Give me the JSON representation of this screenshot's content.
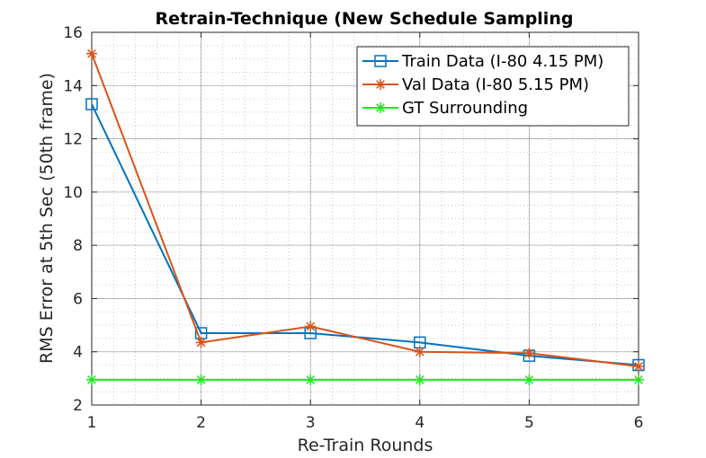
{
  "chart_data": {
    "type": "line",
    "title": "Retrain-Technique (New Schedule Sampling",
    "xlabel": "Re-Train Rounds",
    "ylabel": "RMS Error at 5th Sec (50th frame)",
    "xlim": [
      1,
      6
    ],
    "ylim": [
      2,
      16
    ],
    "xticks": [
      1,
      2,
      3,
      4,
      5,
      6
    ],
    "yticks": [
      2,
      4,
      6,
      8,
      10,
      12,
      14,
      16
    ],
    "grid": true,
    "minor_grid": true,
    "legend_position": "top-right",
    "x": [
      1,
      2,
      3,
      4,
      5,
      6
    ],
    "series": [
      {
        "name": "Train Data (I-80 4.15 PM)",
        "values": [
          13.3,
          4.7,
          4.7,
          4.35,
          3.85,
          3.5
        ],
        "color": "#0072BD",
        "marker": "square"
      },
      {
        "name": "Val Data (I-80 5.15 PM)",
        "values": [
          15.2,
          4.35,
          4.95,
          4.0,
          3.95,
          3.45
        ],
        "color": "#D95319",
        "marker": "asterisk"
      },
      {
        "name": "GT Surrounding",
        "values": [
          2.95,
          2.95,
          2.95,
          2.95,
          2.95,
          2.95
        ],
        "color": "#22E622",
        "marker": "asterisk"
      }
    ]
  }
}
